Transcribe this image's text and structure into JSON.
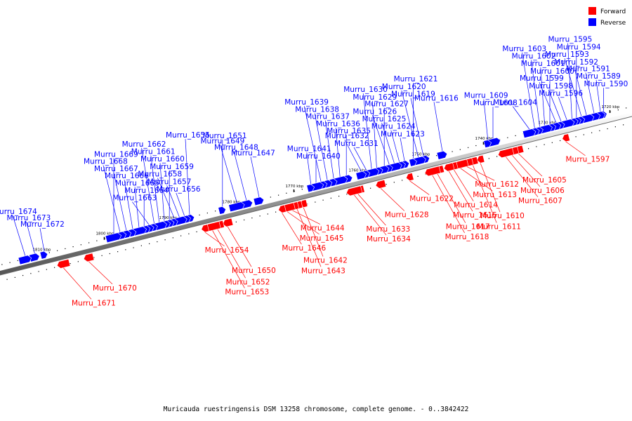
{
  "legend": [
    {
      "label": "Forward",
      "color": "#ff0000"
    },
    {
      "label": "Reverse",
      "color": "#0000ff"
    }
  ],
  "caption": "Muricauda ruestringensis DSM 13258 chromosome, complete genome. - 0..3842422",
  "colors": {
    "forward": "#ff0000",
    "reverse": "#0000ff",
    "backbone": "#777777"
  },
  "ticks": [
    "1720 kbp",
    "1730 kbp",
    "1740 kbp",
    "1750 kbp",
    "1760 kbp",
    "1770 kbp",
    "1780 kbp",
    "1790 kbp",
    "1800 kbp",
    "1810 kbp"
  ],
  "genes": [
    {
      "name": "Murru_1590",
      "strand": "reverse",
      "pos": 0.045
    },
    {
      "name": "Murru_1589",
      "strand": "reverse",
      "pos": 0.05
    },
    {
      "name": "Murru_1591",
      "strand": "reverse",
      "pos": 0.06
    },
    {
      "name": "Murru_1592",
      "strand": "reverse",
      "pos": 0.072
    },
    {
      "name": "Murru_1593",
      "strand": "reverse",
      "pos": 0.08
    },
    {
      "name": "Murru_1594",
      "strand": "reverse",
      "pos": 0.088
    },
    {
      "name": "Murru_1595",
      "strand": "reverse",
      "pos": 0.095
    },
    {
      "name": "Murru_1596",
      "strand": "reverse",
      "pos": 0.103
    },
    {
      "name": "Murru_1597",
      "strand": "forward",
      "pos": 0.105
    },
    {
      "name": "Murru_1598",
      "strand": "reverse",
      "pos": 0.112
    },
    {
      "name": "Murru_1599",
      "strand": "reverse",
      "pos": 0.12
    },
    {
      "name": "Murru_1600",
      "strand": "reverse",
      "pos": 0.13
    },
    {
      "name": "Murru_1601",
      "strand": "reverse",
      "pos": 0.138
    },
    {
      "name": "Murru_1602",
      "strand": "reverse",
      "pos": 0.146
    },
    {
      "name": "Murru_1603",
      "strand": "reverse",
      "pos": 0.154
    },
    {
      "name": "Murru_1604",
      "strand": "reverse",
      "pos": 0.162
    },
    {
      "name": "Murru_1605",
      "strand": "forward",
      "pos": 0.18
    },
    {
      "name": "Murru_1606",
      "strand": "forward",
      "pos": 0.19
    },
    {
      "name": "Murru_1607",
      "strand": "forward",
      "pos": 0.2
    },
    {
      "name": "Murru_1608",
      "strand": "reverse",
      "pos": 0.22
    },
    {
      "name": "Murru_1609",
      "strand": "reverse",
      "pos": 0.228
    },
    {
      "name": "Murru_1610",
      "strand": "forward",
      "pos": 0.24
    },
    {
      "name": "Murru_1611",
      "strand": "forward",
      "pos": 0.252
    },
    {
      "name": "Murru_1612",
      "strand": "forward",
      "pos": 0.262
    },
    {
      "name": "Murru_1613",
      "strand": "forward",
      "pos": 0.272
    },
    {
      "name": "Murru_1614",
      "strand": "forward",
      "pos": 0.282
    },
    {
      "name": "Murru_1615",
      "strand": "forward",
      "pos": 0.29
    },
    {
      "name": "Murru_1616",
      "strand": "reverse",
      "pos": 0.3
    },
    {
      "name": "Murru_1617",
      "strand": "forward",
      "pos": 0.308
    },
    {
      "name": "Murru_1618",
      "strand": "forward",
      "pos": 0.316
    },
    {
      "name": "Murru_1619",
      "strand": "reverse",
      "pos": 0.33
    },
    {
      "name": "Murru_1620",
      "strand": "reverse",
      "pos": 0.338
    },
    {
      "name": "Murru_1621",
      "strand": "reverse",
      "pos": 0.346
    },
    {
      "name": "Murru_1622",
      "strand": "forward",
      "pos": 0.352
    },
    {
      "name": "Murru_1623",
      "strand": "reverse",
      "pos": 0.36
    },
    {
      "name": "Murru_1624",
      "strand": "reverse",
      "pos": 0.368
    },
    {
      "name": "Murru_1625",
      "strand": "reverse",
      "pos": 0.376
    },
    {
      "name": "Murru_1626",
      "strand": "reverse",
      "pos": 0.384
    },
    {
      "name": "Murru_1627",
      "strand": "reverse",
      "pos": 0.392
    },
    {
      "name": "Murru_1628",
      "strand": "forward",
      "pos": 0.398
    },
    {
      "name": "Murru_1629",
      "strand": "reverse",
      "pos": 0.404
    },
    {
      "name": "Murru_1630",
      "strand": "reverse",
      "pos": 0.412
    },
    {
      "name": "Murru_1631",
      "strand": "reverse",
      "pos": 0.42
    },
    {
      "name": "Murru_1632",
      "strand": "reverse",
      "pos": 0.428
    },
    {
      "name": "Murru_1633",
      "strand": "forward",
      "pos": 0.434
    },
    {
      "name": "Murru_1634",
      "strand": "forward",
      "pos": 0.44
    },
    {
      "name": "Murru_1635",
      "strand": "reverse",
      "pos": 0.452
    },
    {
      "name": "Murru_1636",
      "strand": "reverse",
      "pos": 0.462
    },
    {
      "name": "Murru_1637",
      "strand": "reverse",
      "pos": 0.472
    },
    {
      "name": "Murru_1638",
      "strand": "reverse",
      "pos": 0.482
    },
    {
      "name": "Murru_1639",
      "strand": "reverse",
      "pos": 0.492
    },
    {
      "name": "Murru_1640",
      "strand": "reverse",
      "pos": 0.5
    },
    {
      "name": "Murru_1641",
      "strand": "reverse",
      "pos": 0.508
    },
    {
      "name": "Murru_1642",
      "strand": "forward",
      "pos": 0.52
    },
    {
      "name": "Murru_1643",
      "strand": "forward",
      "pos": 0.53
    },
    {
      "name": "Murru_1644",
      "strand": "forward",
      "pos": 0.538
    },
    {
      "name": "Murru_1645",
      "strand": "forward",
      "pos": 0.546
    },
    {
      "name": "Murru_1646",
      "strand": "forward",
      "pos": 0.554
    },
    {
      "name": "Murru_1647",
      "strand": "reverse",
      "pos": 0.59
    },
    {
      "name": "Murru_1648",
      "strand": "reverse",
      "pos": 0.61
    },
    {
      "name": "Murru_1649",
      "strand": "reverse",
      "pos": 0.625
    },
    {
      "name": "Murru_1650",
      "strand": "forward",
      "pos": 0.64
    },
    {
      "name": "Murru_1651",
      "strand": "reverse",
      "pos": 0.648
    },
    {
      "name": "Murru_1652",
      "strand": "forward",
      "pos": 0.656
    },
    {
      "name": "Murru_1653",
      "strand": "forward",
      "pos": 0.664
    },
    {
      "name": "Murru_1654",
      "strand": "forward",
      "pos": 0.676
    },
    {
      "name": "Murru_1655",
      "strand": "reverse",
      "pos": 0.7
    },
    {
      "name": "Murru_1656",
      "strand": "reverse",
      "pos": 0.708
    },
    {
      "name": "Murru_1657",
      "strand": "reverse",
      "pos": 0.716
    },
    {
      "name": "Murru_1658",
      "strand": "reverse",
      "pos": 0.724
    },
    {
      "name": "Murru_1659",
      "strand": "reverse",
      "pos": 0.732
    },
    {
      "name": "Murru_1660",
      "strand": "reverse",
      "pos": 0.74
    },
    {
      "name": "Murru_1661",
      "strand": "reverse",
      "pos": 0.748
    },
    {
      "name": "Murru_1662",
      "strand": "reverse",
      "pos": 0.756
    },
    {
      "name": "Murru_1663",
      "strand": "reverse",
      "pos": 0.764
    },
    {
      "name": "Murru_1664",
      "strand": "reverse",
      "pos": 0.772
    },
    {
      "name": "Murru_1665",
      "strand": "reverse",
      "pos": 0.78
    },
    {
      "name": "Murru_1666",
      "strand": "reverse",
      "pos": 0.79
    },
    {
      "name": "Murru_1667",
      "strand": "reverse",
      "pos": 0.8
    },
    {
      "name": "Murru_1668",
      "strand": "reverse",
      "pos": 0.81
    },
    {
      "name": "Murru_1669",
      "strand": "reverse",
      "pos": 0.82
    },
    {
      "name": "Murru_1670",
      "strand": "forward",
      "pos": 0.86
    },
    {
      "name": "Murru_1671",
      "strand": "forward",
      "pos": 0.9
    },
    {
      "name": "Murru_1672",
      "strand": "reverse",
      "pos": 0.93
    },
    {
      "name": "Murru_1673",
      "strand": "reverse",
      "pos": 0.945
    },
    {
      "name": "Murru_1674",
      "strand": "reverse",
      "pos": 0.96
    }
  ]
}
